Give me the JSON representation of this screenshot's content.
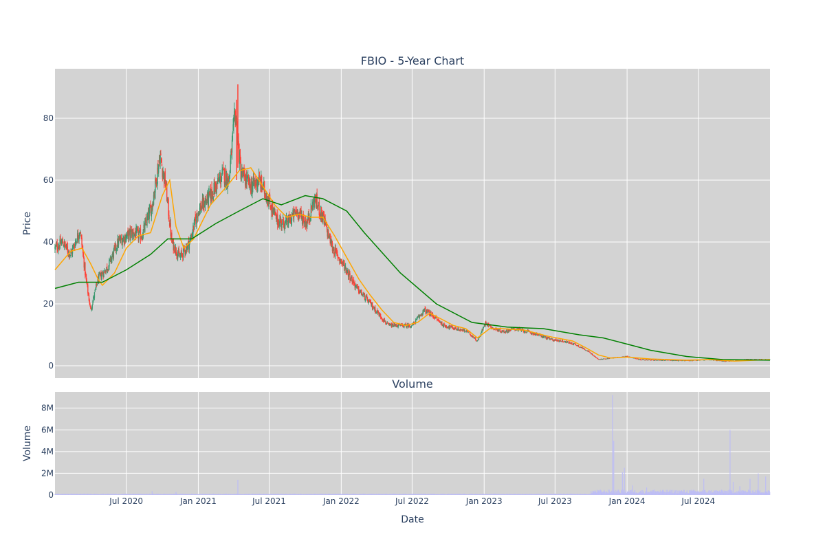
{
  "chart_data": [
    {
      "type": "candlestick",
      "title": "FBIO - 5-Year Chart",
      "ylabel": "Price",
      "xlabel": "",
      "ylim": [
        -4,
        96
      ],
      "xlim": [
        "2020-01-01",
        "2024-12-31"
      ],
      "yticks": [
        "0",
        "20",
        "40",
        "60",
        "80"
      ],
      "ytick_values": [
        0,
        20,
        40,
        60,
        80
      ],
      "grid": true,
      "background": "#d3d3d3",
      "colors": {
        "up": "#3d9970",
        "down": "#ff4136",
        "ma_short": "#ffa500",
        "ma_long": "#008000"
      },
      "series": [
        {
          "type": "candlestick",
          "keypoints": [
            [
              "2020-01-01",
              38
            ],
            [
              "2020-01-20",
              40
            ],
            [
              "2020-02-10",
              36
            ],
            [
              "2020-03-05",
              44
            ],
            [
              "2020-03-20",
              28
            ],
            [
              "2020-04-01",
              18
            ],
            [
              "2020-04-20",
              28
            ],
            [
              "2020-05-15",
              32
            ],
            [
              "2020-06-10",
              40
            ],
            [
              "2020-07-15",
              43
            ],
            [
              "2020-08-10",
              42
            ],
            [
              "2020-09-05",
              52
            ],
            [
              "2020-09-25",
              68
            ],
            [
              "2020-10-10",
              58
            ],
            [
              "2020-10-25",
              40
            ],
            [
              "2020-11-15",
              35
            ],
            [
              "2020-12-10",
              40
            ],
            [
              "2020-12-31",
              50
            ],
            [
              "2021-02-01",
              55
            ],
            [
              "2021-03-05",
              62
            ],
            [
              "2021-03-20",
              60
            ],
            [
              "2021-04-05",
              82
            ],
            [
              "2021-04-20",
              62
            ],
            [
              "2021-05-15",
              58
            ],
            [
              "2021-06-05",
              60
            ],
            [
              "2021-06-25",
              55
            ],
            [
              "2021-07-20",
              47
            ],
            [
              "2021-08-15",
              46
            ],
            [
              "2021-09-10",
              50
            ],
            [
              "2021-10-05",
              46
            ],
            [
              "2021-10-25",
              54
            ],
            [
              "2021-11-15",
              48
            ],
            [
              "2021-12-10",
              38
            ],
            [
              "2022-01-10",
              32
            ],
            [
              "2022-02-10",
              25
            ],
            [
              "2022-03-10",
              21
            ],
            [
              "2022-04-05",
              17
            ],
            [
              "2022-05-01",
              13
            ],
            [
              "2022-06-01",
              13
            ],
            [
              "2022-07-01",
              13
            ],
            [
              "2022-08-01",
              18
            ],
            [
              "2022-08-25",
              16
            ],
            [
              "2022-09-20",
              13
            ],
            [
              "2022-10-20",
              12
            ],
            [
              "2022-11-20",
              11
            ],
            [
              "2022-12-15",
              8
            ],
            [
              "2023-01-05",
              14
            ],
            [
              "2023-01-25",
              12
            ],
            [
              "2023-02-20",
              11
            ],
            [
              "2023-03-20",
              12
            ],
            [
              "2023-04-20",
              11
            ],
            [
              "2023-05-20",
              10
            ],
            [
              "2023-06-20",
              8.5
            ],
            [
              "2023-07-20",
              8
            ],
            [
              "2023-08-20",
              7
            ],
            [
              "2023-09-20",
              5
            ],
            [
              "2023-10-20",
              2
            ],
            [
              "2023-11-20",
              2.5
            ],
            [
              "2024-01-01",
              3
            ],
            [
              "2024-02-01",
              2
            ],
            [
              "2024-04-01",
              1.8
            ],
            [
              "2024-06-01",
              1.7
            ],
            [
              "2024-08-01",
              2
            ],
            [
              "2024-09-01",
              1.5
            ],
            [
              "2024-10-01",
              1.6
            ],
            [
              "2024-11-01",
              2
            ],
            [
              "2024-12-31",
              2
            ]
          ]
        },
        {
          "type": "line",
          "color": "#ffa500",
          "points": [
            [
              "2020-01-01",
              31
            ],
            [
              "2020-02-10",
              37
            ],
            [
              "2020-03-10",
              38
            ],
            [
              "2020-04-01",
              33
            ],
            [
              "2020-04-20",
              28
            ],
            [
              "2020-05-01",
              26
            ],
            [
              "2020-06-01",
              30
            ],
            [
              "2020-07-01",
              38
            ],
            [
              "2020-08-01",
              42
            ],
            [
              "2020-09-01",
              43
            ],
            [
              "2020-10-01",
              55
            ],
            [
              "2020-10-20",
              60
            ],
            [
              "2020-11-05",
              45
            ],
            [
              "2020-11-25",
              38
            ],
            [
              "2020-12-20",
              41
            ],
            [
              "2021-02-01",
              52
            ],
            [
              "2021-03-15",
              58
            ],
            [
              "2021-04-15",
              63
            ],
            [
              "2021-05-15",
              64
            ],
            [
              "2021-06-15",
              58
            ],
            [
              "2021-07-15",
              52
            ],
            [
              "2021-08-15",
              48
            ],
            [
              "2021-09-15",
              49
            ],
            [
              "2021-10-15",
              48
            ],
            [
              "2021-11-15",
              48
            ],
            [
              "2021-12-15",
              42
            ],
            [
              "2022-01-15",
              35
            ],
            [
              "2022-02-15",
              28
            ],
            [
              "2022-03-15",
              23
            ],
            [
              "2022-04-15",
              18
            ],
            [
              "2022-05-15",
              14
            ],
            [
              "2022-06-15",
              13
            ],
            [
              "2022-07-15",
              14
            ],
            [
              "2022-08-15",
              17
            ],
            [
              "2022-09-15",
              15
            ],
            [
              "2022-10-15",
              13
            ],
            [
              "2022-11-15",
              12
            ],
            [
              "2022-12-15",
              9
            ],
            [
              "2023-01-15",
              12
            ],
            [
              "2023-02-15",
              12
            ],
            [
              "2023-04-15",
              11.5
            ],
            [
              "2023-06-15",
              9.5
            ],
            [
              "2023-08-15",
              8
            ],
            [
              "2023-09-15",
              6
            ],
            [
              "2023-10-20",
              3.5
            ],
            [
              "2023-11-20",
              2.5
            ],
            [
              "2024-01-01",
              2.8
            ],
            [
              "2024-03-01",
              2.2
            ],
            [
              "2024-06-01",
              1.8
            ],
            [
              "2024-08-01",
              2
            ],
            [
              "2024-10-01",
              1.5
            ],
            [
              "2024-12-31",
              2
            ]
          ]
        },
        {
          "type": "line",
          "color": "#008000",
          "points": [
            [
              "2020-01-01",
              25
            ],
            [
              "2020-03-01",
              27
            ],
            [
              "2020-05-01",
              27
            ],
            [
              "2020-07-01",
              31
            ],
            [
              "2020-09-01",
              36
            ],
            [
              "2020-10-15",
              41
            ],
            [
              "2020-12-15",
              41
            ],
            [
              "2021-02-15",
              46
            ],
            [
              "2021-04-15",
              50
            ],
            [
              "2021-06-15",
              54
            ],
            [
              "2021-08-01",
              52
            ],
            [
              "2021-10-01",
              55
            ],
            [
              "2021-11-15",
              54
            ],
            [
              "2022-01-15",
              50
            ],
            [
              "2022-03-01",
              43
            ],
            [
              "2022-06-01",
              30
            ],
            [
              "2022-09-01",
              20
            ],
            [
              "2022-12-01",
              14
            ],
            [
              "2023-03-01",
              12.5
            ],
            [
              "2023-06-01",
              12
            ],
            [
              "2023-09-01",
              10
            ],
            [
              "2023-11-01",
              9
            ],
            [
              "2024-01-01",
              7
            ],
            [
              "2024-03-01",
              5
            ],
            [
              "2024-06-01",
              3
            ],
            [
              "2024-09-01",
              2
            ],
            [
              "2024-12-31",
              1.8
            ]
          ]
        }
      ]
    },
    {
      "type": "bar",
      "title": "Volume",
      "ylabel": "Volume",
      "xlabel": "Date",
      "ylim": [
        0,
        9500000
      ],
      "yticks": [
        "0",
        "2M",
        "4M",
        "6M",
        "8M"
      ],
      "ytick_values": [
        0,
        2000000,
        4000000,
        6000000,
        8000000
      ],
      "xticks": [
        "Jul 2020",
        "Jan 2021",
        "Jul 2021",
        "Jan 2022",
        "Jul 2022",
        "Jan 2023",
        "Jul 2023",
        "Jan 2024",
        "Jul 2024"
      ],
      "xtick_dates": [
        "2020-07-01",
        "2021-01-01",
        "2021-07-01",
        "2022-01-01",
        "2022-07-01",
        "2023-01-01",
        "2023-07-01",
        "2024-01-01",
        "2024-07-01"
      ],
      "grid": true,
      "background": "#d3d3d3",
      "bar_color": "#bdbdf5",
      "spikes": [
        [
          "2020-09-05",
          350000
        ],
        [
          "2020-11-05",
          280000
        ],
        [
          "2021-04-12",
          1400000
        ],
        [
          "2023-11-25",
          9200000
        ],
        [
          "2023-11-28",
          5000000
        ],
        [
          "2023-12-20",
          2100000
        ],
        [
          "2023-12-25",
          2500000
        ],
        [
          "2024-01-15",
          900000
        ],
        [
          "2024-02-20",
          700000
        ],
        [
          "2024-03-10",
          500000
        ],
        [
          "2024-07-15",
          1500000
        ],
        [
          "2024-09-20",
          6000000
        ],
        [
          "2024-09-28",
          1200000
        ],
        [
          "2024-10-15",
          800000
        ],
        [
          "2024-11-10",
          1500000
        ],
        [
          "2024-12-01",
          2000000
        ],
        [
          "2024-12-20",
          1700000
        ]
      ]
    }
  ]
}
